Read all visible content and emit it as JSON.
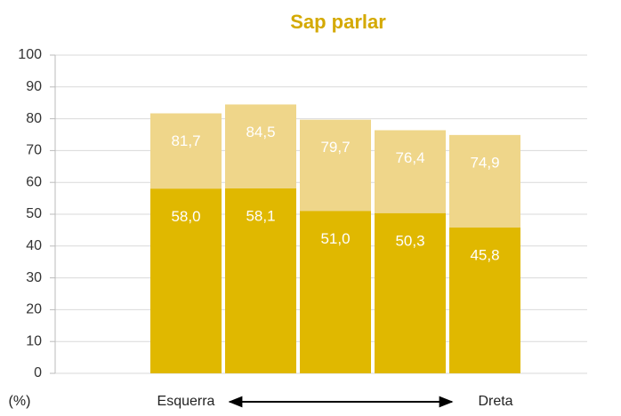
{
  "chart_data": {
    "type": "bar",
    "title": "Sap parlar",
    "overlap": true,
    "categories": [
      null,
      null,
      null,
      null,
      null
    ],
    "series": [
      {
        "color": "#efd68a",
        "values": [
          81.7,
          84.5,
          79.7,
          76.4,
          74.9
        ],
        "value_labels": [
          "81,7",
          "84,5",
          "79,7",
          "76,4",
          "74,9"
        ]
      },
      {
        "color": "#e0b800",
        "values": [
          58.0,
          58.1,
          51.0,
          50.3,
          45.8
        ],
        "value_labels": [
          "58,0",
          "58,1",
          "51,0",
          "50,3",
          "45,8"
        ]
      }
    ],
    "ylim": [
      0,
      100
    ],
    "yticks": [
      0,
      10,
      20,
      30,
      40,
      50,
      60,
      70,
      80,
      90,
      100
    ],
    "grid": true,
    "y_unit": "(%)",
    "x_left_label": "Esquerra",
    "x_right_label": "Dreta"
  }
}
